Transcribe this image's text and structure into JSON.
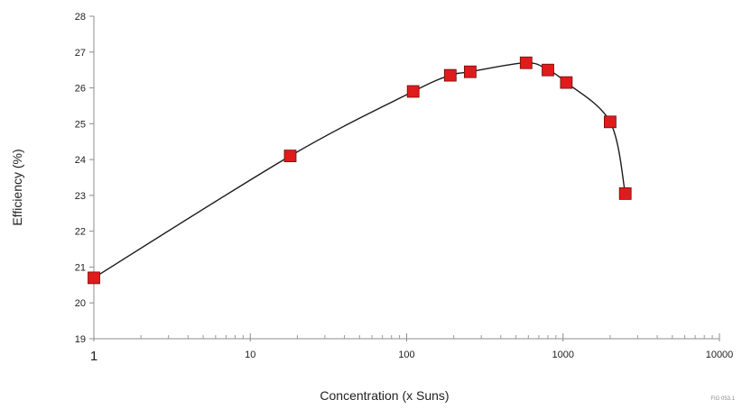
{
  "chart_data": {
    "type": "line",
    "title": "",
    "xlabel": "Concentration (x Suns)",
    "ylabel": "Efficiency (%)",
    "x_scale": "log",
    "xlim": [
      1,
      10000
    ],
    "ylim": [
      19,
      28
    ],
    "x_ticks": [
      1,
      10,
      100,
      1000,
      10000
    ],
    "y_ticks": [
      19,
      20,
      21,
      22,
      23,
      24,
      25,
      26,
      27,
      28
    ],
    "x": [
      1,
      18,
      110,
      190,
      255,
      580,
      800,
      1050,
      2000,
      2500
    ],
    "values": [
      20.7,
      24.1,
      25.9,
      26.35,
      26.45,
      26.7,
      26.5,
      26.15,
      25.05,
      23.05
    ],
    "marker": "square",
    "marker_color": "#e01b1b",
    "line_color": "#1a1a1a",
    "grid": false,
    "legend": "none",
    "figure_id": "FIG 053.1"
  }
}
